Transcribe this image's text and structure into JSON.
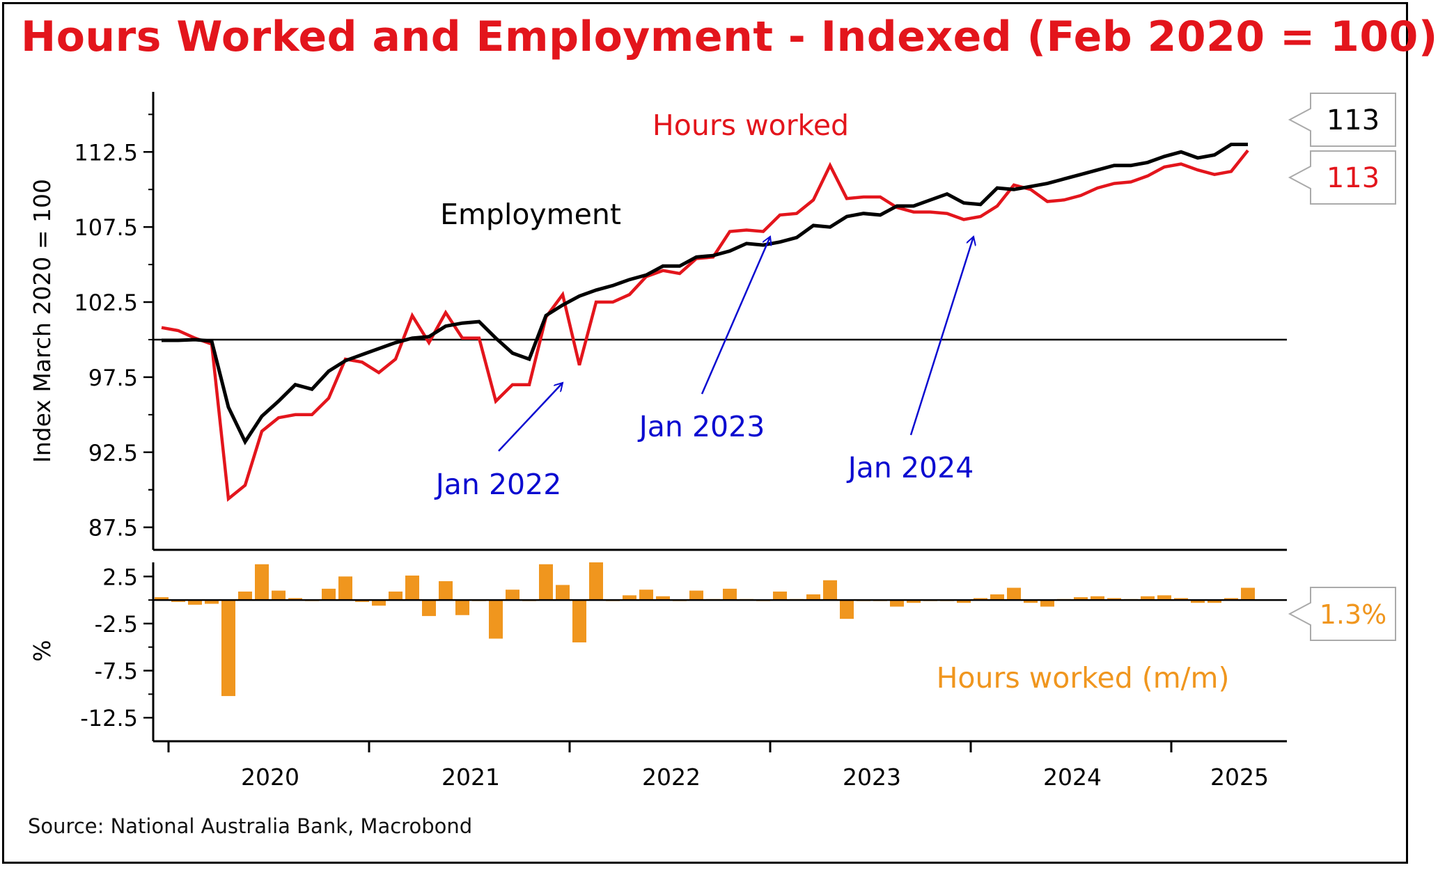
{
  "title": "Hours Worked and Employment - Indexed (Feb 2020 = 100)",
  "source": "Source: National Australia Bank, Macrobond",
  "chart_data": [
    {
      "type": "line",
      "ylabel": "Index March 2020 = 100",
      "ylim": [
        86,
        116.5
      ],
      "yticks": [
        87.5,
        92.5,
        97.5,
        102.5,
        107.5,
        112.5
      ],
      "ytick_labels": [
        "87.5",
        "92.5",
        "97.5",
        "102.5",
        "107.5",
        "112.5"
      ],
      "reference_line": 100,
      "x": [
        "2019-12",
        "2020-01",
        "2020-02",
        "2020-03",
        "2020-04",
        "2020-05",
        "2020-06",
        "2020-07",
        "2020-08",
        "2020-09",
        "2020-10",
        "2020-11",
        "2020-12",
        "2021-01",
        "2021-02",
        "2021-03",
        "2021-04",
        "2021-05",
        "2021-06",
        "2021-07",
        "2021-08",
        "2021-09",
        "2021-10",
        "2021-11",
        "2021-12",
        "2022-01",
        "2022-02",
        "2022-03",
        "2022-04",
        "2022-05",
        "2022-06",
        "2022-07",
        "2022-08",
        "2022-09",
        "2022-10",
        "2022-11",
        "2022-12",
        "2023-01",
        "2023-02",
        "2023-03",
        "2023-04",
        "2023-05",
        "2023-06",
        "2023-07",
        "2023-08",
        "2023-09",
        "2023-10",
        "2023-11",
        "2023-12",
        "2024-01",
        "2024-02",
        "2024-03",
        "2024-04",
        "2024-05",
        "2024-06",
        "2024-07",
        "2024-08",
        "2024-09",
        "2024-10",
        "2024-11",
        "2024-12",
        "2025-01",
        "2025-02",
        "2025-03",
        "2025-04",
        "2025-05",
        "2025-06",
        "2025-07"
      ],
      "series": [
        {
          "name": "Employment",
          "color": "#000000",
          "values": [
            99.95,
            99.95,
            100.0,
            99.9,
            95.5,
            93.2,
            94.9,
            95.9,
            97.0,
            96.7,
            97.9,
            98.6,
            99.0,
            99.4,
            99.8,
            100.1,
            100.2,
            100.9,
            101.1,
            101.2,
            100.1,
            99.1,
            98.7,
            101.6,
            102.3,
            102.9,
            103.3,
            103.6,
            104.0,
            104.3,
            104.9,
            104.9,
            105.5,
            105.6,
            105.9,
            106.4,
            106.3,
            106.5,
            106.8,
            107.6,
            107.5,
            108.2,
            108.4,
            108.3,
            108.9,
            108.9,
            109.3,
            109.7,
            109.1,
            109.0,
            110.1,
            110.0,
            110.2,
            110.4,
            110.7,
            111.0,
            111.3,
            111.6,
            111.6,
            111.8,
            112.2,
            112.5,
            112.1,
            112.3,
            113.0,
            113.0,
            null,
            null
          ],
          "end_label": "113"
        },
        {
          "name": "Hours worked",
          "color": "#e3151c",
          "values": [
            100.8,
            100.6,
            100.1,
            99.7,
            89.4,
            90.3,
            93.9,
            94.8,
            95.0,
            95.0,
            96.1,
            98.7,
            98.5,
            97.8,
            98.7,
            101.6,
            99.8,
            101.8,
            100.1,
            100.1,
            95.9,
            97.0,
            97.0,
            101.5,
            103.0,
            98.3,
            102.5,
            102.5,
            103.0,
            104.2,
            104.6,
            104.4,
            105.4,
            105.5,
            107.2,
            107.3,
            107.2,
            108.3,
            108.4,
            109.3,
            111.6,
            109.4,
            109.5,
            109.5,
            108.8,
            108.5,
            108.5,
            108.4,
            108.0,
            108.2,
            108.9,
            110.3,
            110.0,
            109.2,
            109.3,
            109.6,
            110.1,
            110.4,
            110.5,
            110.9,
            111.5,
            111.7,
            111.3,
            111.0,
            111.2,
            112.6,
            null,
            null
          ],
          "end_label": "113"
        }
      ],
      "annotations": [
        {
          "text": "Hours worked",
          "color": "#e3151c"
        },
        {
          "text": "Employment",
          "color": "#000000"
        },
        {
          "text": "Jan 2022",
          "color": "#0a0ad0"
        },
        {
          "text": "Jan 2023",
          "color": "#0a0ad0"
        },
        {
          "text": "Jan 2024",
          "color": "#0a0ad0"
        }
      ]
    },
    {
      "type": "bar",
      "ylabel": "%",
      "ylim": [
        -15,
        4
      ],
      "yticks": [
        2.5,
        -2.5,
        -7.5,
        -12.5
      ],
      "ytick_labels": [
        "2.5",
        "-2.5",
        "-7.5",
        "-12.5"
      ],
      "series": [
        {
          "name": "Hours worked (m/m)",
          "color": "#f0961e",
          "values": [
            0.3,
            -0.2,
            -0.5,
            -0.4,
            -10.2,
            0.9,
            3.8,
            1.0,
            0.2,
            0.0,
            1.2,
            2.5,
            -0.2,
            -0.6,
            0.9,
            2.6,
            -1.7,
            2.0,
            -1.6,
            0.0,
            -4.1,
            1.1,
            0.0,
            3.8,
            1.6,
            -4.5,
            4.0,
            0.0,
            0.5,
            1.1,
            0.4,
            -0.1,
            1.0,
            0.1,
            1.2,
            0.1,
            -0.1,
            0.9,
            0.1,
            0.6,
            2.1,
            -2.0,
            0.0,
            0.0,
            -0.7,
            -0.3,
            0.0,
            0.0,
            -0.3,
            0.2,
            0.6,
            1.3,
            -0.3,
            -0.7,
            0.1,
            0.3,
            0.4,
            0.2,
            0.1,
            0.4,
            0.5,
            0.2,
            -0.3,
            -0.3,
            0.2,
            1.3,
            null,
            null
          ],
          "end_label": "1.3%"
        }
      ]
    }
  ],
  "x_axis": {
    "labels": [
      "2020",
      "2021",
      "2022",
      "2023",
      "2024",
      "2025"
    ]
  }
}
